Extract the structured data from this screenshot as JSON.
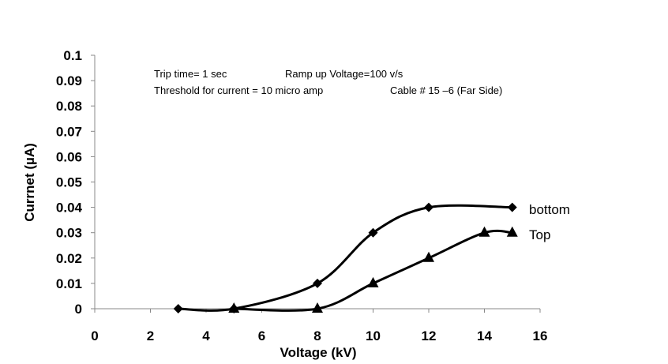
{
  "chart_data": {
    "type": "line",
    "title": "",
    "xlabel": "Voltage (kV)",
    "ylabel": "Currnet (µA)",
    "xlim": [
      0,
      16
    ],
    "ylim": [
      0,
      0.1
    ],
    "x_ticks": [
      0,
      2,
      4,
      6,
      8,
      10,
      12,
      14,
      16
    ],
    "y_ticks": [
      0,
      0.01,
      0.02,
      0.03,
      0.04,
      0.05,
      0.06,
      0.07,
      0.08,
      0.09,
      0.1
    ],
    "grid": false,
    "annotations": [
      "Trip time= 1 sec",
      "Ramp up Voltage=100 v/s",
      "Threshold for current = 10 micro amp",
      "Cable # 15 –6 (Far Side)"
    ],
    "series": [
      {
        "name": "bottom",
        "marker": "diamond",
        "color": "#000000",
        "points": [
          [
            3,
            0
          ],
          [
            5,
            0
          ],
          [
            8,
            0.01
          ],
          [
            10,
            0.03
          ],
          [
            12,
            0.04
          ],
          [
            15,
            0.04
          ]
        ]
      },
      {
        "name": "Top",
        "marker": "triangle",
        "color": "#000000",
        "points": [
          [
            5,
            0
          ],
          [
            8,
            0
          ],
          [
            10,
            0.01
          ],
          [
            12,
            0.02
          ],
          [
            14,
            0.03
          ],
          [
            15,
            0.03
          ]
        ]
      }
    ]
  }
}
